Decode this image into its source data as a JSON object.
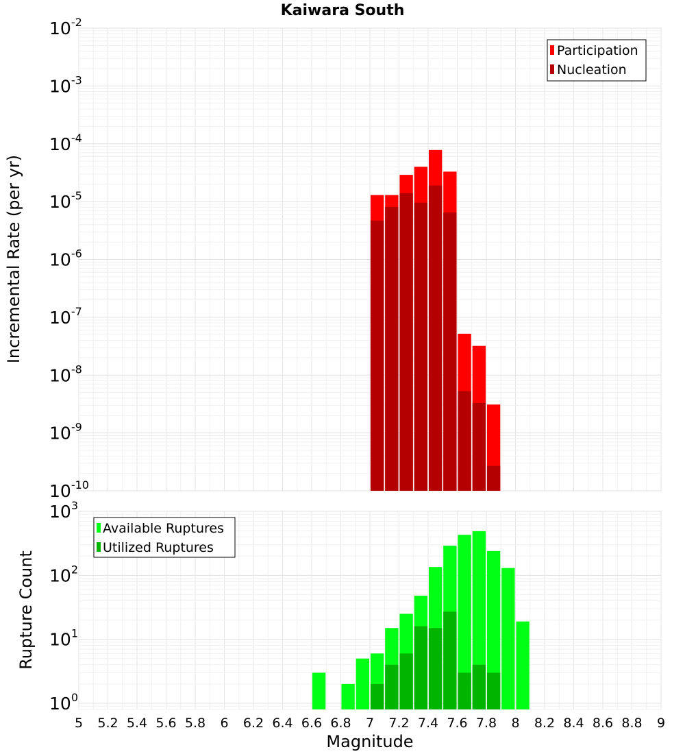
{
  "title": "Kaiwara South",
  "chart_data": [
    {
      "type": "bar",
      "ylabel": "Incremental Rate (per yr)",
      "yscale": "log",
      "ylim": [
        1e-10,
        0.01
      ],
      "xlim": [
        5,
        9
      ],
      "grid": true,
      "legend_position": "top-right",
      "ytick_labels": [
        {
          "base": "10",
          "exp": "-10"
        },
        {
          "base": "10",
          "exp": "-9"
        },
        {
          "base": "10",
          "exp": "-8"
        },
        {
          "base": "10",
          "exp": "-7"
        },
        {
          "base": "10",
          "exp": "-6"
        },
        {
          "base": "10",
          "exp": "-5"
        },
        {
          "base": "10",
          "exp": "-4"
        },
        {
          "base": "10",
          "exp": "-3"
        },
        {
          "base": "10",
          "exp": "-2"
        }
      ],
      "series": [
        {
          "name": "Participation",
          "color": "#ff0000",
          "x": [
            7.05,
            7.15,
            7.25,
            7.35,
            7.45,
            7.55,
            7.65,
            7.75,
            7.85
          ],
          "values": [
            1.3e-05,
            1.3e-05,
            2.9e-05,
            4e-05,
            7.8e-05,
            3.3e-05,
            5.2e-08,
            3.2e-08,
            3.1e-09
          ]
        },
        {
          "name": "Nucleation",
          "color": "#b40000",
          "x": [
            7.05,
            7.15,
            7.25,
            7.35,
            7.45,
            7.55,
            7.65,
            7.75,
            7.85
          ],
          "values": [
            4.7e-06,
            8.1e-06,
            1.4e-05,
            9.6e-06,
            1.9e-05,
            6.5e-06,
            5.3e-09,
            3.3e-09,
            2.7e-10
          ]
        }
      ]
    },
    {
      "type": "bar",
      "xlabel": "Magnitude",
      "ylabel": "Rupture Count",
      "yscale": "log",
      "ylim": [
        0.8,
        1000
      ],
      "xlim": [
        5,
        9
      ],
      "grid": true,
      "legend_position": "top-left",
      "ytick_labels": [
        {
          "base": "10",
          "exp": "0"
        },
        {
          "base": "10",
          "exp": "1"
        },
        {
          "base": "10",
          "exp": "2"
        },
        {
          "base": "10",
          "exp": "3"
        }
      ],
      "xtick_labels": [
        "5",
        "5.2",
        "5.4",
        "5.6",
        "5.8",
        "6",
        "6.2",
        "6.4",
        "6.6",
        "6.8",
        "7",
        "7.2",
        "7.4",
        "7.6",
        "7.8",
        "8",
        "8.2",
        "8.4",
        "8.6",
        "8.8",
        "9"
      ],
      "series": [
        {
          "name": "Available Ruptures",
          "color": "#00ff14",
          "x": [
            6.65,
            6.85,
            6.95,
            7.05,
            7.15,
            7.25,
            7.35,
            7.45,
            7.55,
            7.65,
            7.75,
            7.85,
            7.95,
            8.05
          ],
          "values": [
            3,
            2,
            5,
            6,
            15,
            25,
            48,
            135,
            290,
            430,
            490,
            240,
            130,
            19
          ]
        },
        {
          "name": "Utilized Ruptures",
          "color": "#00b400",
          "x": [
            7.05,
            7.15,
            7.25,
            7.35,
            7.45,
            7.55,
            7.65,
            7.75,
            7.85
          ],
          "values": [
            2,
            4,
            6,
            16,
            15,
            27,
            3,
            4,
            3
          ]
        }
      ]
    }
  ]
}
